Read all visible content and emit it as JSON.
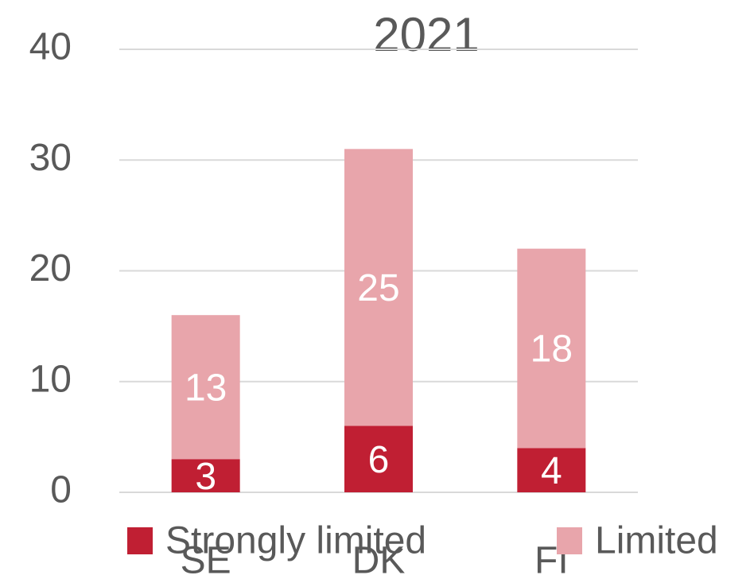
{
  "chart_data": {
    "type": "stacked_bar",
    "title": "2021",
    "categories": [
      "SE",
      "DK",
      "FI"
    ],
    "series": [
      {
        "name": "Strongly limited",
        "color": "#c01f33",
        "values": [
          3,
          6,
          4
        ]
      },
      {
        "name": "Limited",
        "color": "#e8a5ab",
        "values": [
          13,
          25,
          18
        ]
      }
    ],
    "ylim": [
      0,
      40
    ],
    "yticks": [
      0,
      10,
      20,
      30,
      40
    ],
    "grid": true,
    "legend": "bottom"
  }
}
